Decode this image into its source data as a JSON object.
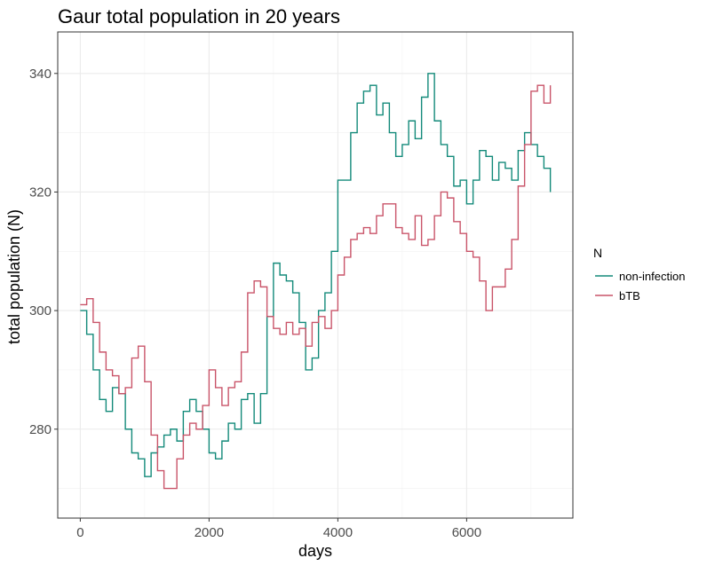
{
  "chart_data": {
    "type": "line",
    "title": "Gaur total population in 20 years",
    "xlabel": "days",
    "ylabel": "total population (N)",
    "xlim": [
      -350,
      7650
    ],
    "ylim": [
      265,
      347
    ],
    "x_ticks": [
      0,
      2000,
      4000,
      6000
    ],
    "y_ticks": [
      280,
      300,
      320,
      340
    ],
    "x_tick_labels": [
      "0",
      "2000",
      "4000",
      "6000"
    ],
    "y_tick_labels": [
      "280",
      "300",
      "320",
      "340"
    ],
    "grid": true,
    "legend": {
      "title": "N",
      "position": "right"
    },
    "colors": {
      "non-infection": "#138a7a",
      "bTB": "#c95469"
    },
    "series": [
      {
        "name": "non-infection",
        "color": "#138a7a",
        "x": [
          0,
          100,
          200,
          300,
          400,
          500,
          600,
          700,
          800,
          900,
          1000,
          1100,
          1200,
          1300,
          1400,
          1500,
          1600,
          1700,
          1800,
          1900,
          2000,
          2100,
          2200,
          2300,
          2400,
          2500,
          2600,
          2700,
          2800,
          2900,
          3000,
          3100,
          3200,
          3300,
          3400,
          3500,
          3600,
          3700,
          3800,
          3900,
          4000,
          4100,
          4200,
          4300,
          4400,
          4500,
          4600,
          4700,
          4800,
          4900,
          5000,
          5100,
          5200,
          5300,
          5400,
          5500,
          5600,
          5700,
          5800,
          5900,
          6000,
          6100,
          6200,
          6300,
          6400,
          6500,
          6600,
          6700,
          6800,
          6900,
          7000,
          7100,
          7200,
          7300
        ],
        "values": [
          300,
          296,
          290,
          285,
          283,
          287,
          286,
          280,
          276,
          275,
          272,
          276,
          277,
          279,
          280,
          278,
          283,
          285,
          283,
          280,
          276,
          275,
          278,
          281,
          280,
          285,
          286,
          281,
          286,
          299,
          308,
          306,
          305,
          303,
          298,
          290,
          292,
          300,
          303,
          310,
          322,
          322,
          330,
          335,
          337,
          338,
          333,
          335,
          330,
          326,
          328,
          332,
          329,
          336,
          340,
          332,
          328,
          326,
          321,
          322,
          318,
          322,
          327,
          326,
          322,
          325,
          324,
          322,
          327,
          330,
          328,
          326,
          324,
          320
        ]
      },
      {
        "name": "bTB",
        "color": "#c95469",
        "x": [
          0,
          100,
          200,
          300,
          400,
          500,
          600,
          700,
          800,
          900,
          1000,
          1100,
          1200,
          1300,
          1400,
          1500,
          1600,
          1700,
          1800,
          1900,
          2000,
          2100,
          2200,
          2300,
          2400,
          2500,
          2600,
          2700,
          2800,
          2900,
          3000,
          3100,
          3200,
          3300,
          3400,
          3500,
          3600,
          3700,
          3800,
          3900,
          4000,
          4100,
          4200,
          4300,
          4400,
          4500,
          4600,
          4700,
          4800,
          4900,
          5000,
          5100,
          5200,
          5300,
          5400,
          5500,
          5600,
          5700,
          5800,
          5900,
          6000,
          6100,
          6200,
          6300,
          6400,
          6500,
          6600,
          6700,
          6800,
          6900,
          7000,
          7100,
          7200,
          7300
        ],
        "values": [
          301,
          302,
          298,
          293,
          290,
          289,
          286,
          287,
          292,
          294,
          288,
          279,
          273,
          270,
          270,
          275,
          279,
          281,
          280,
          284,
          290,
          287,
          284,
          287,
          288,
          293,
          303,
          305,
          304,
          299,
          297,
          296,
          298,
          296,
          297,
          294,
          298,
          299,
          297,
          300,
          306,
          309,
          312,
          313,
          314,
          313,
          316,
          318,
          318,
          314,
          313,
          312,
          316,
          311,
          312,
          316,
          320,
          319,
          315,
          313,
          310,
          309,
          305,
          300,
          304,
          304,
          307,
          312,
          321,
          328,
          337,
          338,
          335,
          338
        ]
      }
    ]
  }
}
